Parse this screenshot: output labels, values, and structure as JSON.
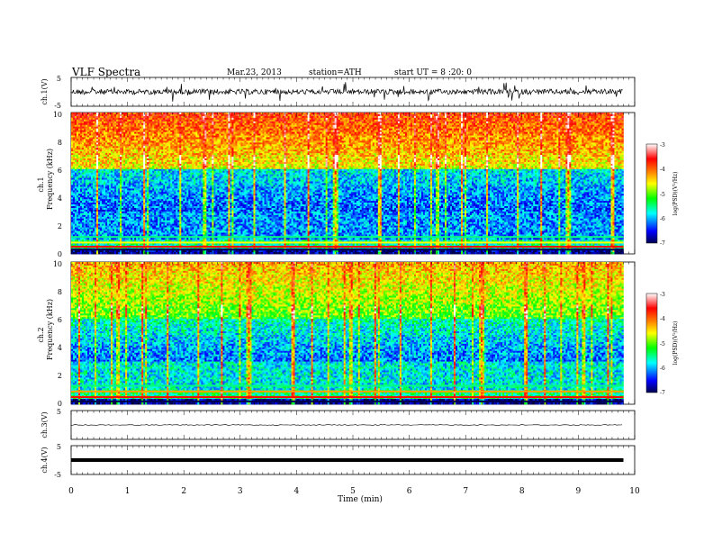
{
  "header": {
    "title": "VLF  Spectra",
    "date": "Mar.23, 2013",
    "station": "station=ATH",
    "start": "start  UT =   8  :20: 0"
  },
  "chart_data": [
    {
      "type": "line",
      "panel": "ch1-waveform",
      "ylabel": "ch.1(V)",
      "ylim": [
        -5,
        5
      ],
      "yticks": [
        "5",
        "-5"
      ],
      "xlim": [
        0,
        10
      ],
      "color": "#000000"
    },
    {
      "type": "heatmap",
      "panel": "ch1-spectrogram",
      "ylabel_top": "ch.1",
      "ylabel": "Frequency  (kHz)",
      "ylim": [
        0,
        10
      ],
      "yticks": [
        "0",
        "2",
        "4",
        "6",
        "8",
        "10"
      ],
      "xlim": [
        0,
        9.8
      ],
      "colorbar": {
        "label": "log(PSD)(V²/Hz)",
        "ticks": [
          "-3",
          "-4",
          "-5",
          "-6",
          "-7"
        ],
        "range": [
          -7,
          -3
        ],
        "colors": [
          "#000050",
          "#0000ff",
          "#00ffff",
          "#00ff00",
          "#ffff00",
          "#ff8000",
          "#ff0000",
          "#ffffff"
        ]
      }
    },
    {
      "type": "heatmap",
      "panel": "ch2-spectrogram",
      "ylabel_top": "ch.2",
      "ylabel": "Frequency  (kHz)",
      "ylim": [
        0,
        10
      ],
      "yticks": [
        "0",
        "2",
        "4",
        "6",
        "8",
        "10"
      ],
      "xlim": [
        0,
        9.8
      ],
      "colorbar": {
        "label": "log(PSD)(V²/Hz)",
        "ticks": [
          "-3",
          "-4",
          "-5",
          "-6",
          "-7"
        ],
        "range": [
          -7,
          -3
        ]
      }
    },
    {
      "type": "line",
      "panel": "ch3-waveform",
      "ylabel": "ch.3(V)",
      "ylim": [
        -5,
        5
      ],
      "yticks": [
        "5"
      ]
    },
    {
      "type": "line",
      "panel": "ch4-waveform",
      "ylabel": "ch.4(V)",
      "ylim": [
        -5,
        5
      ],
      "yticks": [
        "5",
        "-5"
      ]
    }
  ],
  "xaxis": {
    "label": "Time  (min)",
    "ticks": [
      "0",
      "1",
      "2",
      "3",
      "4",
      "5",
      "6",
      "7",
      "8",
      "9",
      "10"
    ],
    "range": [
      0,
      10
    ]
  }
}
